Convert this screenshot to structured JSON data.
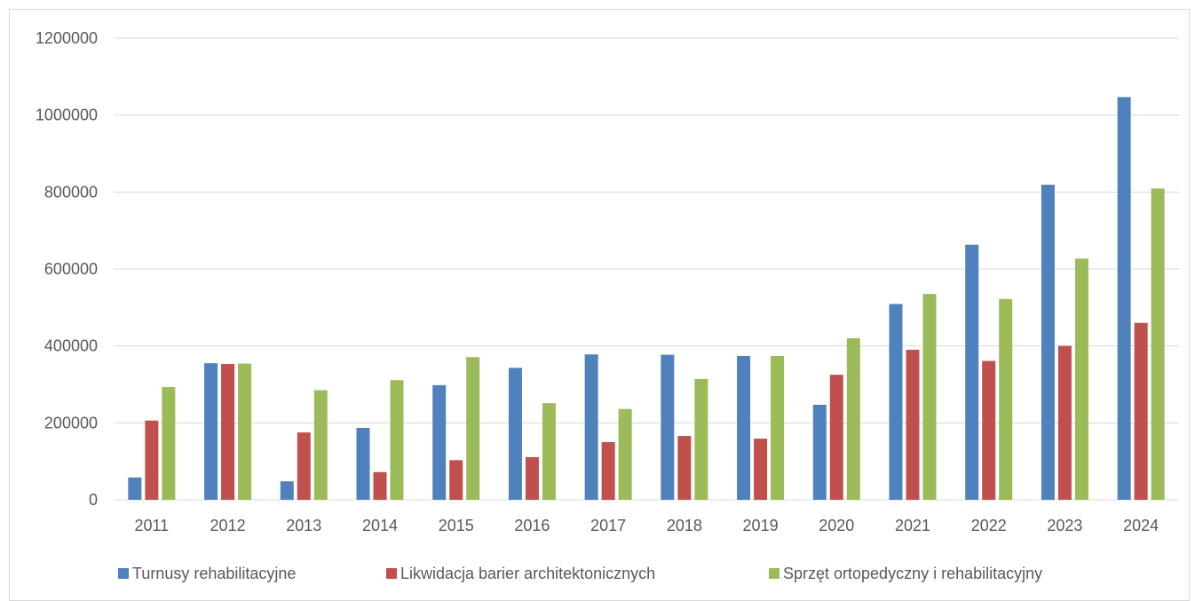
{
  "chart_data": {
    "type": "bar",
    "title": "",
    "xlabel": "",
    "ylabel": "",
    "ylim": [
      0,
      1200000
    ],
    "yticks": [
      0,
      200000,
      400000,
      600000,
      800000,
      1000000,
      1200000
    ],
    "ytick_labels": [
      "0",
      "200000",
      "400000",
      "600000",
      "800000",
      "1000000",
      "1200000"
    ],
    "grid": true,
    "legend_position": "bottom",
    "categories": [
      "2011",
      "2012",
      "2013",
      "2014",
      "2015",
      "2016",
      "2017",
      "2018",
      "2019",
      "2020",
      "2021",
      "2022",
      "2023",
      "2024"
    ],
    "series": [
      {
        "name": "Turnusy rehabilitacyjne",
        "color": "#4f81bd",
        "values": [
          58000,
          355000,
          48000,
          187000,
          298000,
          343000,
          378000,
          377000,
          374000,
          247000,
          509000,
          663000,
          819000,
          1047000
        ]
      },
      {
        "name": "Likwidacja barier architektonicznych",
        "color": "#c0504d",
        "values": [
          206000,
          353000,
          175000,
          72000,
          103000,
          111000,
          150000,
          166000,
          159000,
          325000,
          390000,
          361000,
          400000,
          460000
        ]
      },
      {
        "name": "Sprzęt ortopedyczny i rehabilitacyjny",
        "color": "#9bbb59",
        "values": [
          293000,
          354000,
          285000,
          311000,
          371000,
          251000,
          236000,
          314000,
          374000,
          420000,
          535000,
          522000,
          627000,
          809000
        ]
      }
    ]
  }
}
